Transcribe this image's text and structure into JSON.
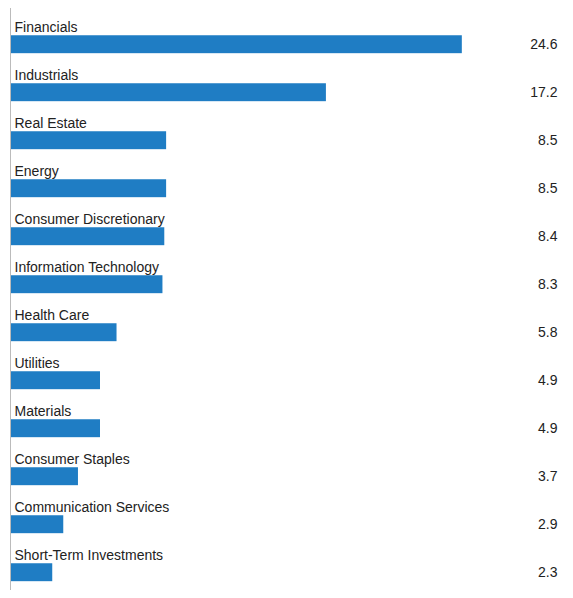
{
  "chart_data": {
    "type": "bar",
    "orientation": "horizontal",
    "categories": [
      "Financials",
      "Industrials",
      "Real Estate",
      "Energy",
      "Consumer Discretionary",
      "Information Technology",
      "Health Care",
      "Utilities",
      "Materials",
      "Consumer Staples",
      "Communication Services",
      "Short-Term Investments"
    ],
    "values": [
      24.6,
      17.2,
      8.5,
      8.5,
      8.4,
      8.3,
      5.8,
      4.9,
      4.9,
      3.7,
      2.9,
      2.3
    ],
    "color": "#1F7DC4",
    "xlim": [
      0,
      30
    ],
    "data_labels": true,
    "tick_labels": false,
    "grid": false
  }
}
